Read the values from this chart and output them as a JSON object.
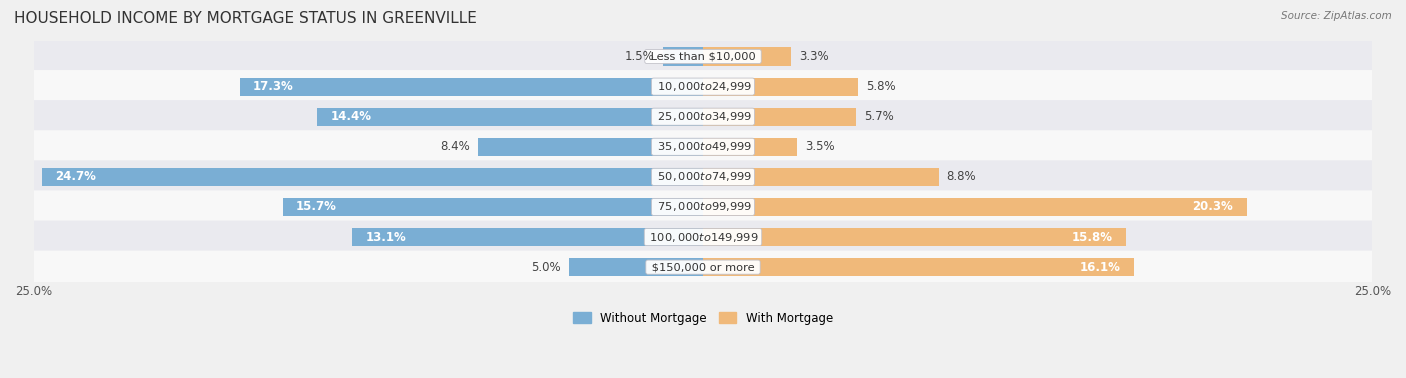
{
  "title": "HOUSEHOLD INCOME BY MORTGAGE STATUS IN GREENVILLE",
  "source": "Source: ZipAtlas.com",
  "categories": [
    "Less than $10,000",
    "$10,000 to $24,999",
    "$25,000 to $34,999",
    "$35,000 to $49,999",
    "$50,000 to $74,999",
    "$75,000 to $99,999",
    "$100,000 to $149,999",
    "$150,000 or more"
  ],
  "without_mortgage": [
    1.5,
    17.3,
    14.4,
    8.4,
    24.7,
    15.7,
    13.1,
    5.0
  ],
  "with_mortgage": [
    3.3,
    5.8,
    5.7,
    3.5,
    8.8,
    20.3,
    15.8,
    16.1
  ],
  "color_without": "#7aaed4",
  "color_with": "#f0b97a",
  "row_colors": [
    "#eaeaef",
    "#f8f8f8",
    "#eaeaef",
    "#f8f8f8",
    "#eaeaef",
    "#f8f8f8",
    "#eaeaef",
    "#f8f8f8"
  ],
  "axis_max": 25.0,
  "legend_without": "Without Mortgage",
  "legend_with": "With Mortgage",
  "title_fontsize": 11,
  "label_fontsize": 8.5,
  "category_fontsize": 8.2,
  "axis_label_fontsize": 8.5,
  "fig_bg": "#f0f0f0"
}
